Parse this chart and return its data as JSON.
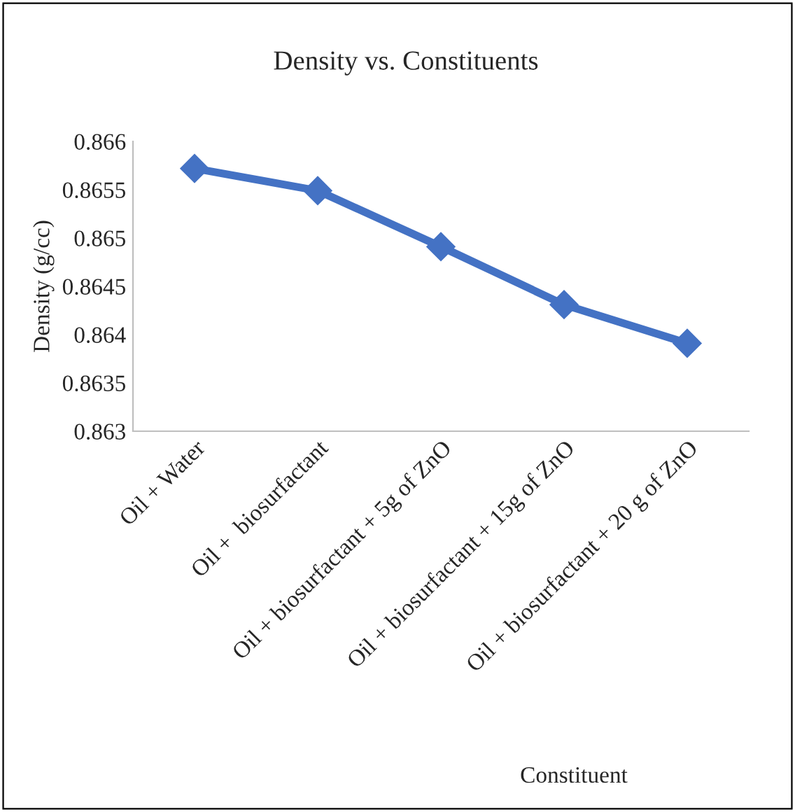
{
  "chart_data": {
    "type": "line",
    "title": "Density vs. Constituents",
    "xlabel": "Constituent",
    "ylabel": "Density (g/cc)",
    "categories": [
      "Oil + Water",
      "Oil +  biosurfactant",
      "Oil + biosurfactant + 5g of ZnO",
      "Oil + biosurfactant + 15g of ZnO",
      "Oil + biosurfactant + 20 g of ZnO"
    ],
    "series": [
      {
        "color": "#4472c4",
        "values": [
          0.86572,
          0.86549,
          0.86491,
          0.86431,
          0.86391
        ]
      }
    ],
    "ylim": [
      0.863,
      0.866
    ],
    "yticks": [
      0.863,
      0.8635,
      0.864,
      0.8645,
      0.865,
      0.8655,
      0.866
    ],
    "grid": false,
    "marker": "diamond",
    "line_style": "solid"
  }
}
